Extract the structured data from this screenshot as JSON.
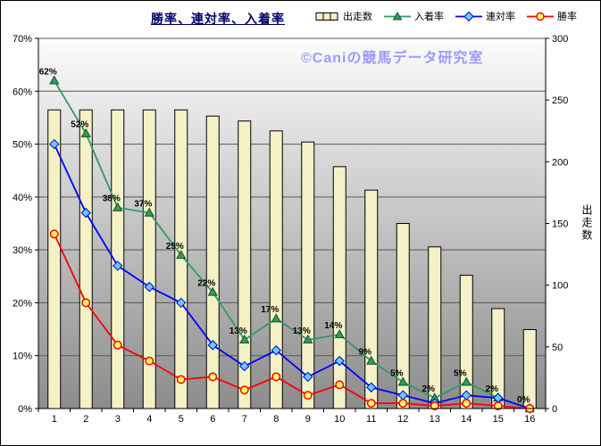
{
  "title": "勝率、連対率、入着率",
  "watermark": "©Caniの競馬データ研究室",
  "chart_data": {
    "type": "bar+line",
    "categories": [
      "1",
      "2",
      "3",
      "4",
      "5",
      "6",
      "7",
      "8",
      "9",
      "10",
      "11",
      "12",
      "13",
      "14",
      "15",
      "16"
    ],
    "bar_series": {
      "name": "出走数",
      "axis": "right",
      "values": [
        242,
        242,
        242,
        242,
        242,
        237,
        233,
        225,
        216,
        196,
        177,
        150,
        131,
        108,
        81,
        64
      ],
      "fill": "#F4F1C6",
      "stroke": "#000000"
    },
    "line_series": [
      {
        "name": "入着率",
        "color": "#339966",
        "marker": "triangle",
        "marker_fill": "#339966",
        "marker_stroke": "#14532D",
        "values": [
          62,
          52,
          38,
          37,
          29,
          22,
          13,
          17,
          13,
          14,
          9,
          5,
          2,
          5,
          2,
          0
        ],
        "labels": [
          "62%",
          "52%",
          "38%",
          "37%",
          "29%",
          "22%",
          "13%",
          "17%",
          "13%",
          "14%",
          "9%",
          "5%",
          "2%",
          "5%",
          "2%",
          "0%"
        ]
      },
      {
        "name": "連対率",
        "color": "#0000FF",
        "marker": "diamond",
        "marker_fill": "#66CCFF",
        "marker_stroke": "#0000CC",
        "values": [
          50,
          37,
          27,
          23,
          20,
          12,
          8,
          11,
          6,
          9,
          4,
          2.5,
          1,
          2.5,
          2,
          0
        ],
        "labels": []
      },
      {
        "name": "勝率",
        "color": "#FF0000",
        "marker": "circle",
        "marker_fill": "#FFFF66",
        "marker_stroke": "#FF0000",
        "values": [
          33,
          20,
          12,
          9,
          5.5,
          6,
          3.5,
          6,
          2.5,
          4.5,
          1,
          1,
          0.5,
          1,
          0.5,
          0
        ],
        "labels": []
      }
    ],
    "left_axis": {
      "min": 0,
      "max": 70,
      "step": 10,
      "suffix": "%"
    },
    "right_axis": {
      "min": 0,
      "max": 300,
      "step": 50,
      "title": "出走数"
    },
    "plot_gradient": [
      "#FCFCFC",
      "#8C8C8C"
    ],
    "gridline_color": "#595959",
    "axis_color": "#000000",
    "label_color": "#000000"
  }
}
